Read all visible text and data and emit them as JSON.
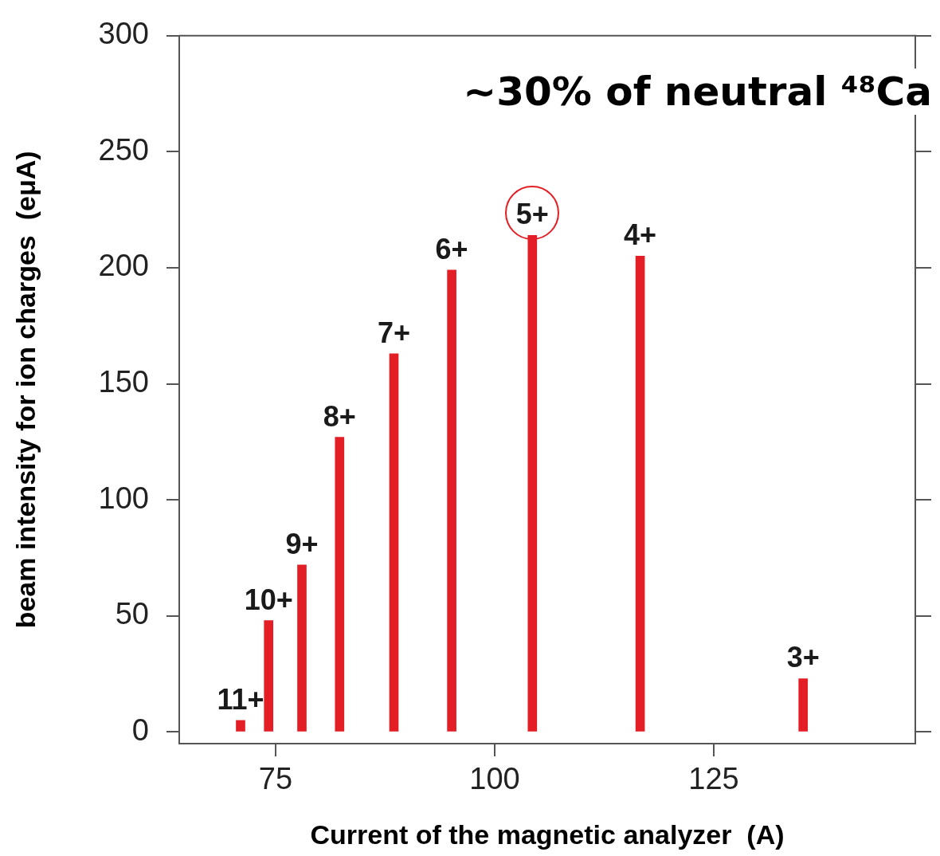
{
  "chart_data": {
    "type": "bar",
    "xlabel": "Current of the magnetic analyzer  (A)",
    "ylabel": "beam intensity for ion charges  (eμA)",
    "x": [
      71.0,
      74.2,
      78.0,
      82.3,
      88.5,
      95.1,
      104.3,
      116.6,
      135.2
    ],
    "values": [
      5,
      48,
      72,
      127,
      163,
      199,
      214,
      205,
      23
    ],
    "color": "#e31e24",
    "xlim": [
      64,
      148
    ],
    "xticks": [
      75,
      100,
      125
    ],
    "ylim": [
      -5,
      300
    ],
    "yticks": [
      0,
      50,
      100,
      150,
      200,
      250,
      300
    ],
    "annotations": [
      "~30% of neutral ⁴⁸Ca",
      {
        "text": "11+",
        "x": 71.0,
        "y": 5
      },
      {
        "text": "10+",
        "x": 74.2,
        "y": 48
      },
      {
        "text": "9+",
        "x": 78.0,
        "y": 72
      },
      {
        "text": "8+",
        "x": 82.3,
        "y": 127
      },
      {
        "text": "7+",
        "x": 88.5,
        "y": 163
      },
      {
        "text": "6+",
        "x": 95.1,
        "y": 199
      },
      {
        "text": "5+",
        "x": 104.3,
        "y": 214
      },
      {
        "text": "4+",
        "x": 116.6,
        "y": 205
      },
      {
        "text": "3+",
        "x": 135.2,
        "y": 23
      }
    ]
  }
}
